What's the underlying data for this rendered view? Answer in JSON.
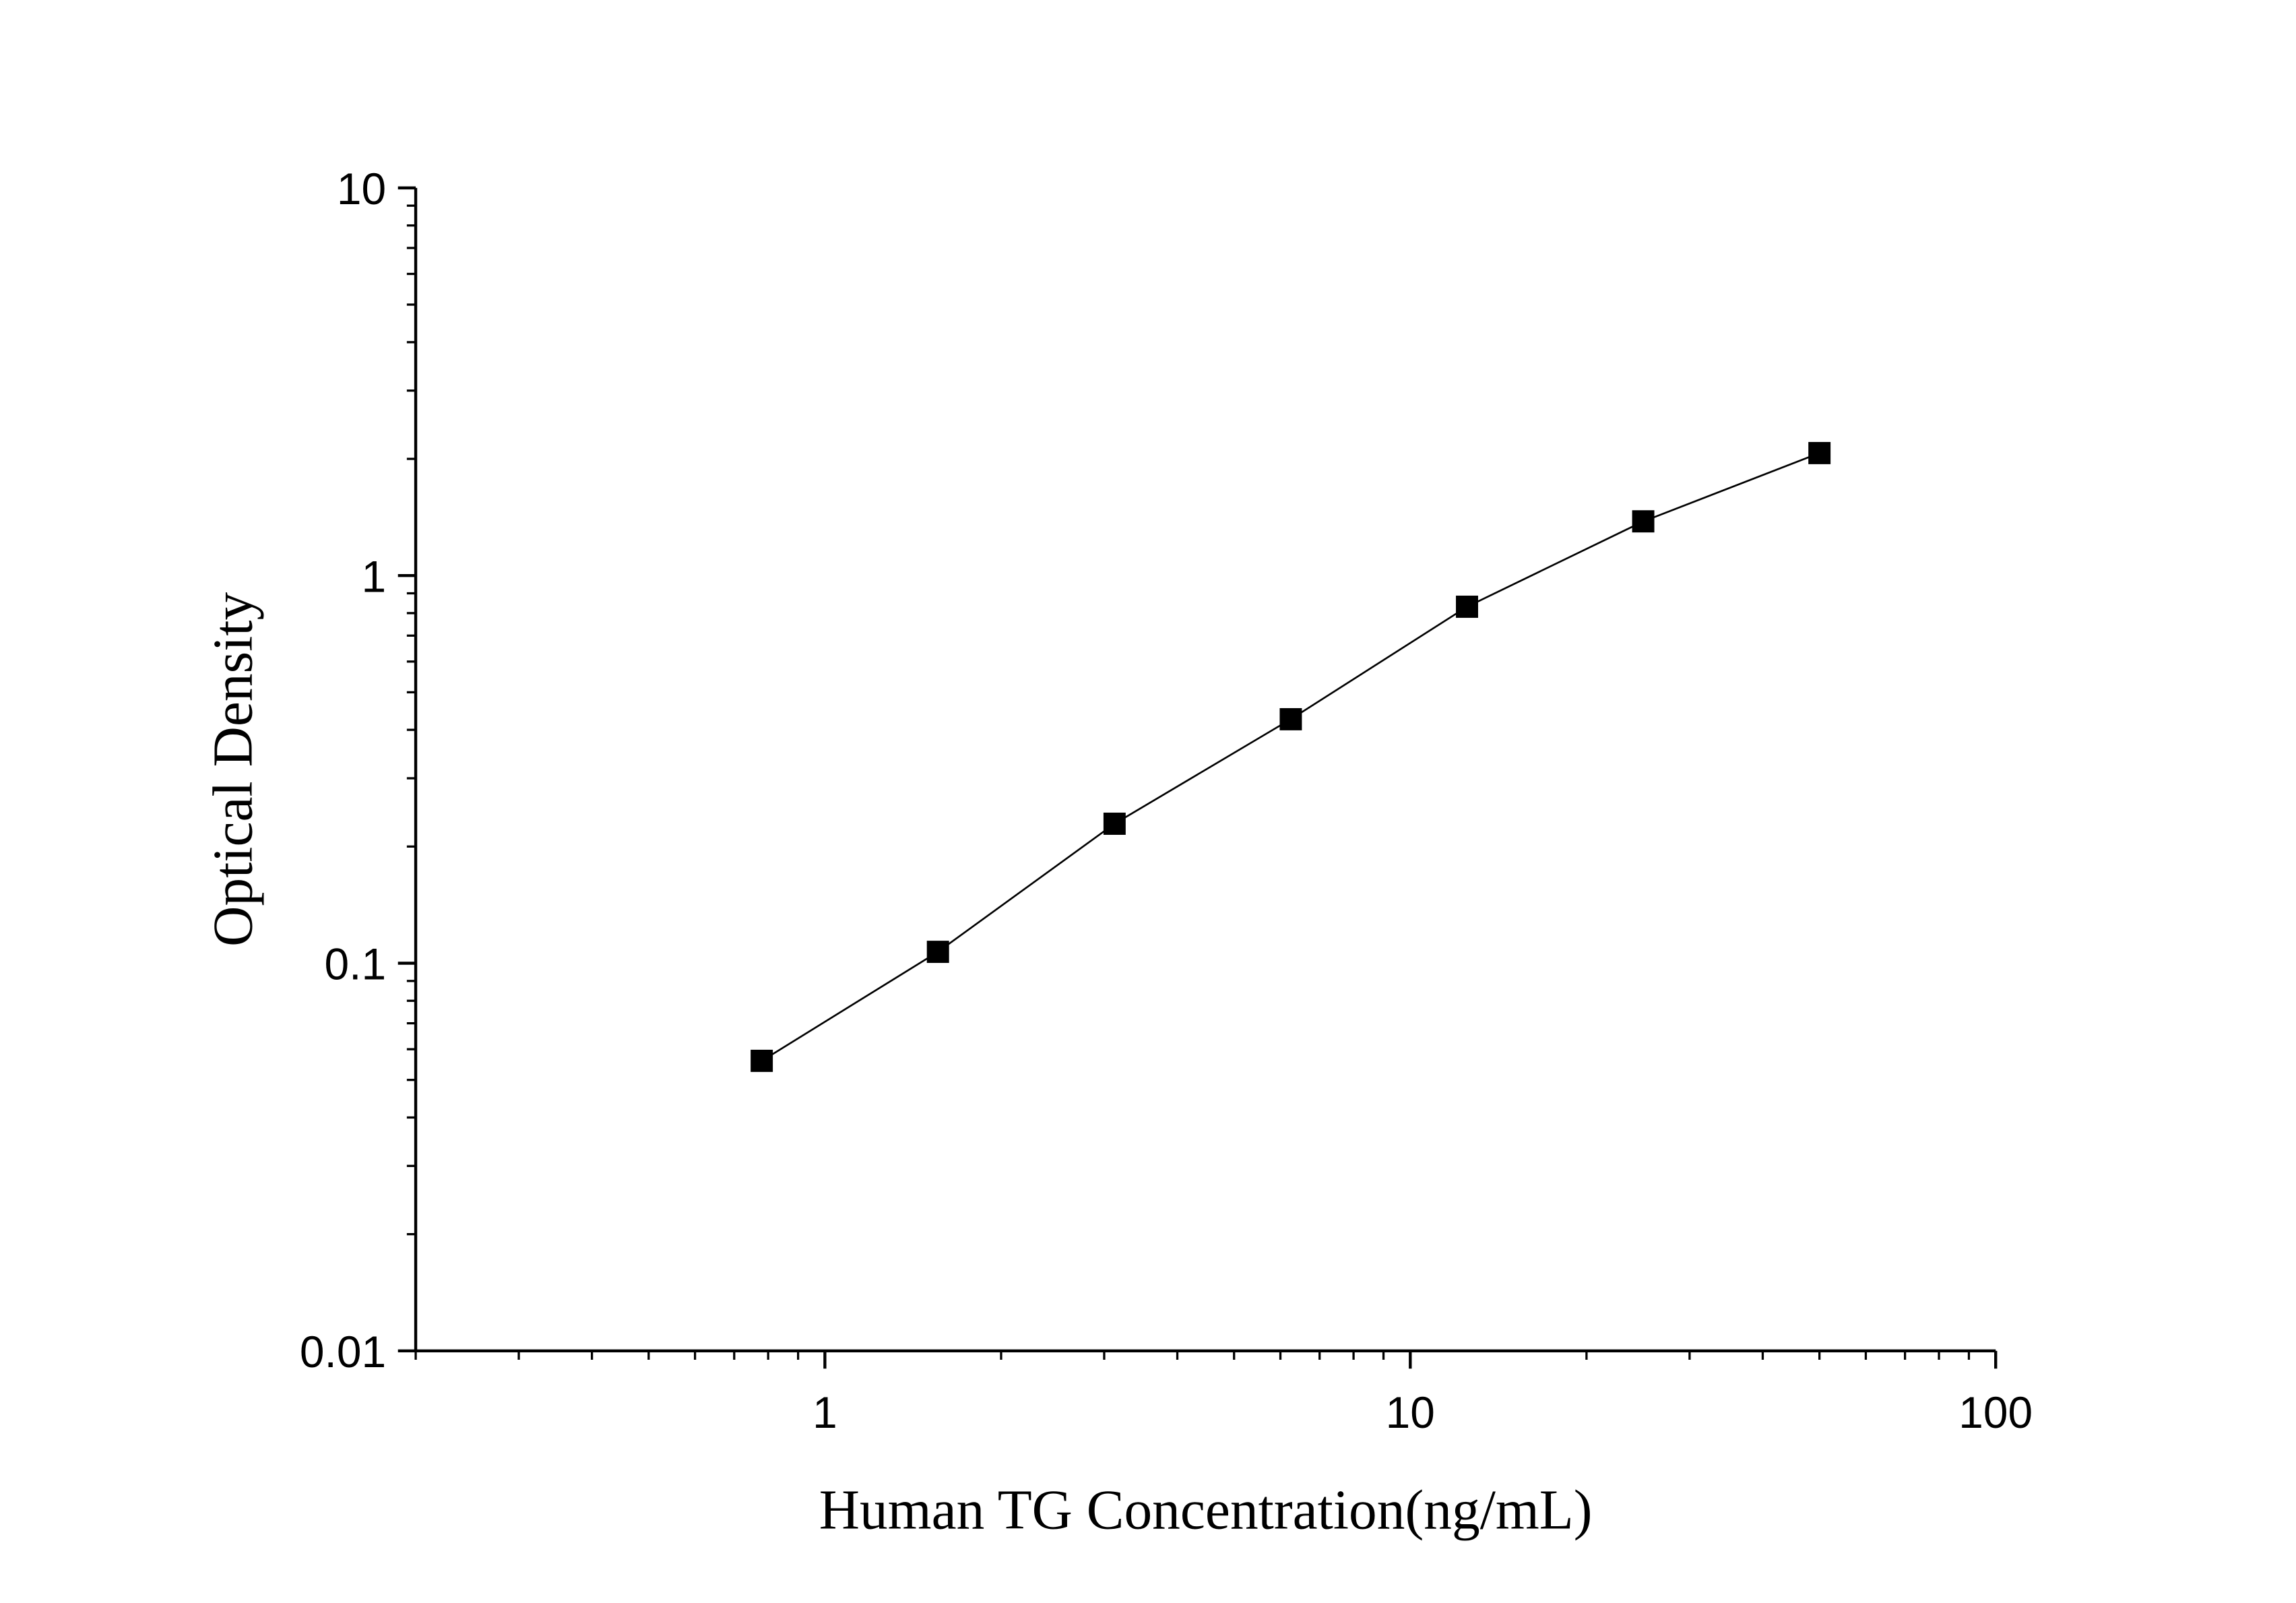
{
  "chart_data": {
    "type": "line",
    "title": "",
    "xlabel": "Human TG Concentration(ng/mL)",
    "ylabel": "Optical Density",
    "x_scale": "log",
    "y_scale": "log",
    "xlim": [
      0.2,
      100
    ],
    "ylim": [
      0.01,
      10
    ],
    "x_ticks": [
      {
        "value": 1,
        "label": "1"
      },
      {
        "value": 10,
        "label": "10"
      },
      {
        "value": 100,
        "label": "100"
      }
    ],
    "y_ticks": [
      {
        "value": 0.01,
        "label": "0.01"
      },
      {
        "value": 0.1,
        "label": "0.1"
      },
      {
        "value": 1,
        "label": "1"
      },
      {
        "value": 10,
        "label": "10"
      }
    ],
    "grid": false,
    "marker": "square",
    "color": "#000000",
    "series": [
      {
        "x": [
          0.78,
          1.56,
          3.125,
          6.25,
          12.5,
          25,
          50
        ],
        "y": [
          0.056,
          0.107,
          0.229,
          0.426,
          0.831,
          1.38,
          2.07
        ]
      }
    ]
  }
}
